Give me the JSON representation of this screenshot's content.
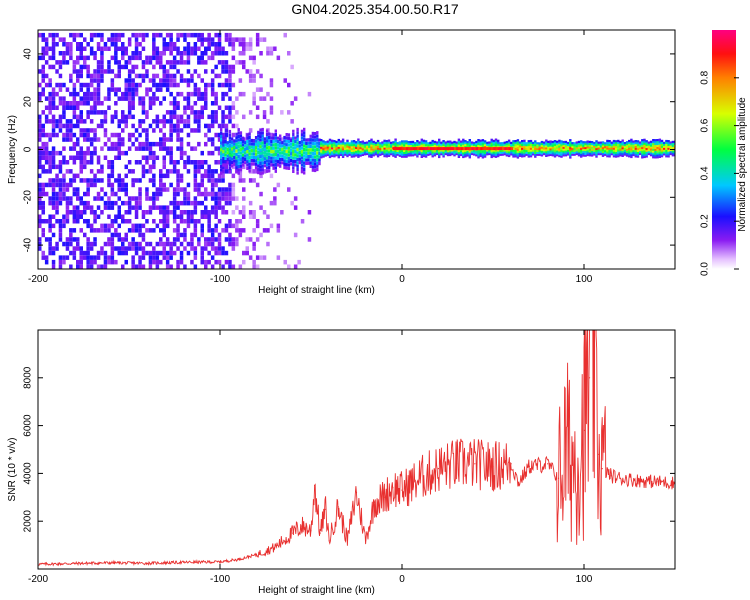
{
  "title": "GN04.2025.354.00.50.R17",
  "chart_data": [
    {
      "type": "heatmap",
      "xlabel": "Height of straight line (km)",
      "ylabel": "Frequency (Hz)",
      "xlim": [
        -200,
        150
      ],
      "ylim": [
        -50,
        50
      ],
      "x_ticks": [
        "-200",
        "-100",
        "0",
        "100"
      ],
      "x_tick_values": [
        -200,
        -100,
        0,
        100
      ],
      "y_ticks": [
        "-40",
        "-20",
        "0",
        "20",
        "40"
      ],
      "y_tick_values": [
        -40,
        -20,
        0,
        20,
        40
      ],
      "colorbar": {
        "label": "Normalized spectral amplitude",
        "range": [
          0,
          1
        ],
        "ticks": [
          "0.0",
          "0.2",
          "0.4",
          "0.6",
          "0.8"
        ],
        "tick_values": [
          0.0,
          0.2,
          0.4,
          0.6,
          0.8
        ]
      },
      "features": [
        {
          "region": "noise",
          "x_range": [
            -200,
            -95
          ],
          "freq_range": [
            -50,
            50
          ],
          "amplitude": 0.1
        },
        {
          "region": "noise-fade",
          "x_range": [
            -95,
            -50
          ],
          "freq_range": [
            -50,
            50
          ],
          "amplitude": 0.05
        },
        {
          "region": "signal-onset",
          "x_range": [
            -100,
            -45
          ],
          "freq_center": 0,
          "freq_halfwidth": 8,
          "amplitude": 0.45
        },
        {
          "region": "signal-band",
          "x_range": [
            -45,
            150
          ],
          "freq_center": 1,
          "freq_halfwidth": 3,
          "amplitude": 0.75
        },
        {
          "region": "signal-peak",
          "x_range": [
            -5,
            60
          ],
          "freq_center": 0,
          "freq_halfwidth": 1,
          "amplitude": 0.95
        }
      ]
    },
    {
      "type": "line",
      "xlabel": "Height of straight line (km)",
      "ylabel": "SNR (10 * v/v)",
      "xlim": [
        -200,
        150
      ],
      "ylim": [
        0,
        10000
      ],
      "x_ticks": [
        "-200",
        "-100",
        "0",
        "100"
      ],
      "x_tick_values": [
        -200,
        -100,
        0,
        100
      ],
      "y_ticks": [
        "2000",
        "4000",
        "6000",
        "8000"
      ],
      "y_tick_values": [
        2000,
        4000,
        6000,
        8000
      ],
      "color": "#e8302f",
      "series": [
        {
          "x": [
            -200,
            -180,
            -160,
            -140,
            -120,
            -100,
            -90,
            -80,
            -70,
            -65,
            -60,
            -55,
            -50,
            -48,
            -45,
            -42,
            -40,
            -35,
            -30,
            -25,
            -20,
            -15,
            -10,
            -5,
            0,
            10,
            20,
            30,
            40,
            50,
            60,
            64,
            70,
            80,
            86,
            90,
            95,
            100,
            103,
            105,
            108,
            110,
            115,
            120,
            130,
            140,
            150
          ],
          "y": [
            200,
            230,
            260,
            240,
            280,
            300,
            400,
            600,
            900,
            1200,
            1500,
            1800,
            1600,
            3500,
            1500,
            2500,
            1200,
            2600,
            1200,
            3200,
            1200,
            2800,
            3000,
            3400,
            3300,
            3800,
            4200,
            4400,
            4400,
            4300,
            4400,
            3600,
            4300,
            4400,
            3800,
            5000,
            4500,
            5800,
            8000,
            9800,
            4800,
            4200,
            3900,
            3800,
            3700,
            3650,
            3600
          ]
        }
      ]
    }
  ]
}
